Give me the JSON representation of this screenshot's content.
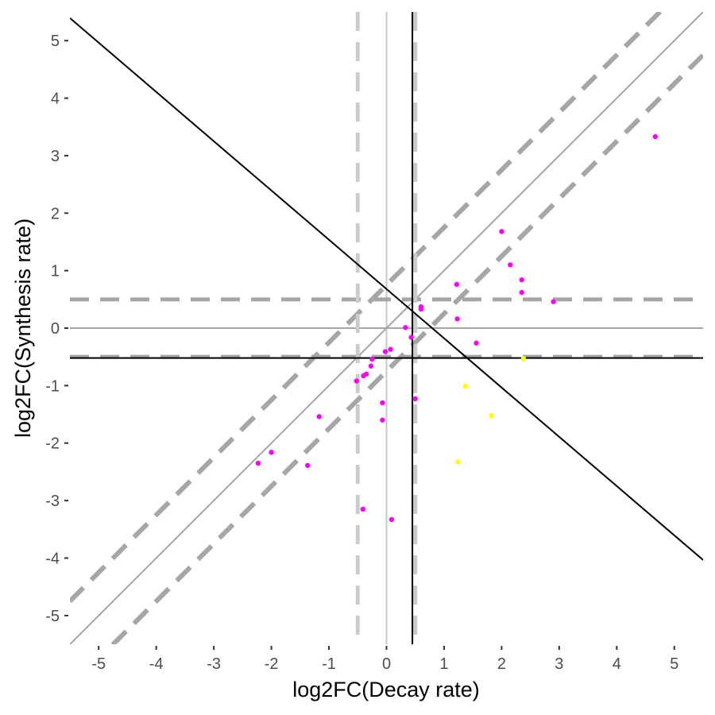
{
  "chart_data": {
    "type": "scatter",
    "xlabel": "log2FC(Decay rate)",
    "ylabel": "log2FC(Synthesis rate)",
    "xlim": [
      -5.5,
      5.5
    ],
    "ylim": [
      -5.5,
      5.5
    ],
    "x_ticks": [
      -5,
      -4,
      -3,
      -2,
      -1,
      0,
      1,
      2,
      3,
      4,
      5
    ],
    "y_ticks": [
      -5,
      -4,
      -3,
      -2,
      -1,
      0,
      1,
      2,
      3,
      4,
      5
    ],
    "grid": false,
    "legend": "none",
    "colors": {
      "magenta_points": "#ff00ff",
      "yellow_points": "#ffff00",
      "zero_lines": "#a6a6a6",
      "dashed_threshold_lines": "#a6a6a6",
      "vertical_dashed_lines": "#cccccc",
      "black_lines": "#000000"
    },
    "reference_lines": {
      "hline_zero": 0,
      "vline_zero": 0,
      "hline_dashed": [
        0.5,
        -0.5
      ],
      "vline_dashed": [
        -0.5,
        0.5
      ],
      "hline_black": -0.52,
      "vline_black": 0.45,
      "diagonal_solid": {
        "slope": 1,
        "intercept": 0
      },
      "diagonal_dashed": [
        {
          "slope": 1,
          "intercept": 0.75
        },
        {
          "slope": 1,
          "intercept": -0.75
        }
      ],
      "black_diagonal": {
        "slope": -0.857,
        "intercept": 0.68
      }
    },
    "series": [
      {
        "color": "#ff00ff",
        "points": [
          [
            4.67,
            3.33
          ],
          [
            2.0,
            1.68
          ],
          [
            2.15,
            1.1
          ],
          [
            2.35,
            0.84
          ],
          [
            2.35,
            0.62
          ],
          [
            2.9,
            0.46
          ],
          [
            1.22,
            0.76
          ],
          [
            0.6,
            0.37
          ],
          [
            0.6,
            0.33
          ],
          [
            1.23,
            0.16
          ],
          [
            0.33,
            0.01
          ],
          [
            1.56,
            -0.26
          ],
          [
            0.43,
            -0.16
          ],
          [
            0.07,
            -0.37
          ],
          [
            -0.02,
            -0.41
          ],
          [
            -0.25,
            -0.54
          ],
          [
            -0.27,
            -0.66
          ],
          [
            -0.35,
            -0.8
          ],
          [
            -0.4,
            -0.83
          ],
          [
            -0.52,
            -0.92
          ],
          [
            0.5,
            -1.23
          ],
          [
            -0.07,
            -1.3
          ],
          [
            -1.17,
            -1.54
          ],
          [
            -0.07,
            -1.6
          ],
          [
            -2.0,
            -2.16
          ],
          [
            -2.23,
            -2.35
          ],
          [
            -1.37,
            -2.39
          ],
          [
            -0.41,
            -3.15
          ],
          [
            0.09,
            -3.33
          ]
        ]
      },
      {
        "color": "#ffff00",
        "points": [
          [
            1.37,
            -1.01
          ],
          [
            1.82,
            -1.52
          ],
          [
            1.24,
            -2.33
          ],
          [
            2.38,
            -0.53
          ]
        ]
      }
    ]
  }
}
